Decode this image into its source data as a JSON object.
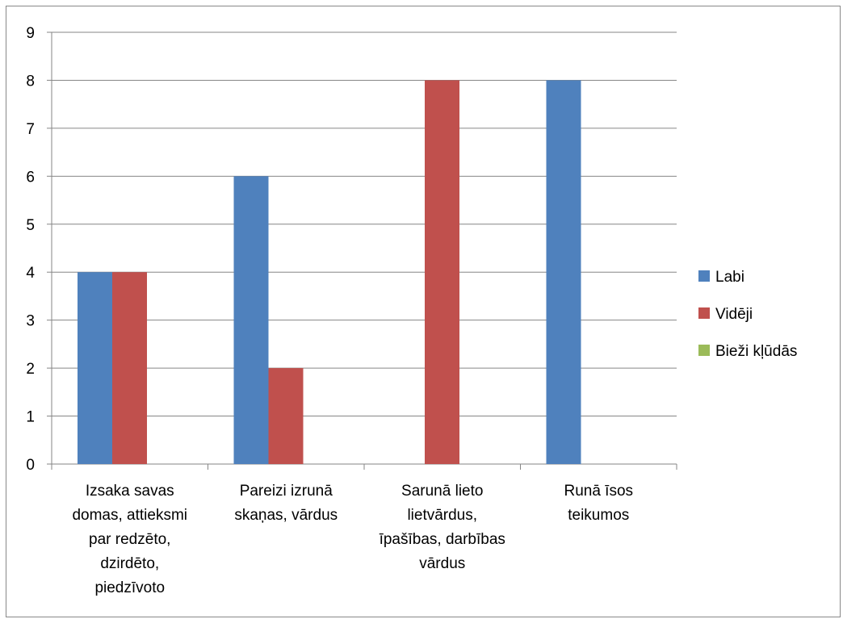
{
  "chart_data": {
    "type": "bar",
    "categories": [
      [
        "Izsaka savas",
        "domas, attieksmi",
        "par redzēto,",
        "dzirdēto,",
        "piedzīvoto"
      ],
      [
        "Pareizi izrunā",
        "skaņas, vārdus"
      ],
      [
        "Sarunā lieto",
        "lietvārdus,",
        "īpašības, darbības",
        "vārdus"
      ],
      [
        "Runā īsos",
        "teikumos"
      ]
    ],
    "series": [
      {
        "name": "Labi",
        "color": "#4F81BD",
        "values": [
          4,
          6,
          0,
          8
        ]
      },
      {
        "name": "Vidēji",
        "color": "#C0504D",
        "values": [
          4,
          2,
          8,
          0
        ]
      },
      {
        "name": "Bieži kļūdās",
        "color": "#9BBB59",
        "values": [
          0,
          0,
          0,
          0
        ]
      }
    ],
    "ylim": [
      0,
      9
    ],
    "yticks": [
      "0",
      "1",
      "2",
      "3",
      "4",
      "5",
      "6",
      "7",
      "8",
      "9"
    ],
    "grid": true,
    "legend_position": "right"
  }
}
